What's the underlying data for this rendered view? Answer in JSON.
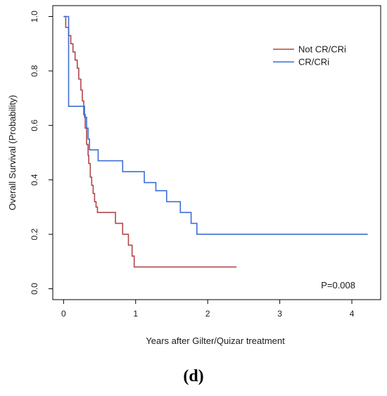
{
  "chart_data": {
    "type": "line",
    "step": true,
    "xlabel": "Years after Gilter/Quizar treatment",
    "ylabel": "Overall Survival (Probability)",
    "xlim": [
      -0.15,
      4.4
    ],
    "ylim": [
      -0.04,
      1.04
    ],
    "x_ticks": [
      0,
      1,
      2,
      3,
      4
    ],
    "y_ticks": [
      0.0,
      0.2,
      0.4,
      0.6,
      0.8,
      1.0
    ],
    "x_tick_labels": [
      "0",
      "1",
      "2",
      "3",
      "4"
    ],
    "y_tick_labels": [
      "0.0",
      "0.2",
      "0.4",
      "0.6",
      "0.8",
      "1.0"
    ],
    "annotation": "P=0.008",
    "legend_position": "top-right",
    "series": [
      {
        "name": "Not CR/CRi",
        "color": "#b2474b",
        "x": [
          0,
          0.03,
          0.07,
          0.1,
          0.13,
          0.16,
          0.19,
          0.21,
          0.24,
          0.26,
          0.28,
          0.3,
          0.32,
          0.34,
          0.35,
          0.37,
          0.39,
          0.41,
          0.43,
          0.45,
          0.47,
          0.72,
          0.82,
          0.9,
          0.95,
          0.98,
          2.4
        ],
        "y": [
          1.0,
          0.96,
          0.93,
          0.9,
          0.87,
          0.84,
          0.81,
          0.77,
          0.73,
          0.69,
          0.64,
          0.59,
          0.53,
          0.49,
          0.46,
          0.41,
          0.38,
          0.35,
          0.32,
          0.3,
          0.28,
          0.24,
          0.2,
          0.16,
          0.12,
          0.08,
          0.08
        ]
      },
      {
        "name": "CR/CRi",
        "color": "#3a6fd6",
        "x": [
          0,
          0.07,
          0.29,
          0.32,
          0.34,
          0.36,
          0.38,
          0.48,
          0.82,
          1.12,
          1.28,
          1.43,
          1.62,
          1.77,
          1.85,
          4.22
        ],
        "y": [
          1.0,
          0.67,
          0.63,
          0.59,
          0.55,
          0.51,
          0.51,
          0.47,
          0.43,
          0.39,
          0.36,
          0.32,
          0.28,
          0.24,
          0.2,
          0.2
        ]
      }
    ]
  },
  "panel_label": "(d)"
}
